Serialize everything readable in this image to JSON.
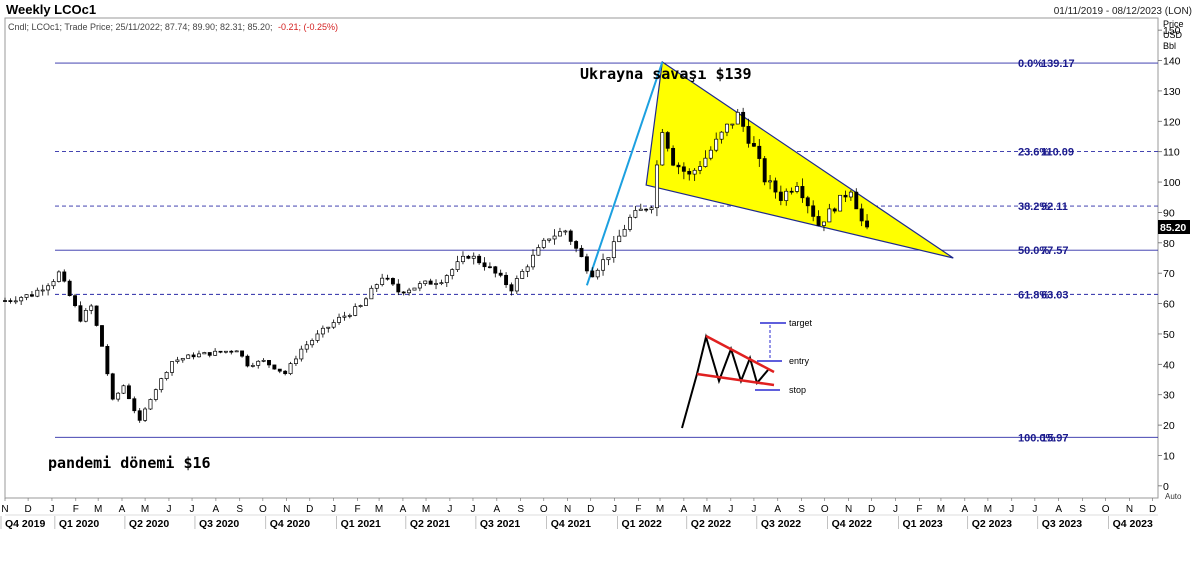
{
  "header": {
    "title": "Weekly LCOc1",
    "date_range": "01/11/2019 - 08/12/2023 (LON)",
    "legend_prefix": "Cndl; LCOc1; Trade Price; 25/11/2022; 87.74; 89.90; 82.31; 85.20;",
    "legend_change": "-0.21; (-0.25%)",
    "units": [
      "Price",
      "USD",
      "Bbl"
    ],
    "auto_label": "Auto"
  },
  "colors": {
    "fib_line": "#2a2aa6",
    "fib_text": "#1a1a8c",
    "wedge_fill": "#ffff00",
    "wedge_edge": "#1f2a8c",
    "impulse": "#1ca0e0",
    "candle": "#000000",
    "change_text": "#d42020",
    "pattern_red": "#e02020",
    "pattern_blue": "#2a2ad0"
  },
  "chart_data": {
    "type": "candlestick",
    "title": "Weekly LCOc1",
    "ylabel": "Price USD Bbl",
    "ylim": [
      -4,
      154
    ],
    "y_ticks": [
      0,
      10,
      20,
      30,
      40,
      50,
      60,
      70,
      80,
      90,
      100,
      110,
      120,
      130,
      140,
      150
    ],
    "x_range": [
      "2019-11-01",
      "2023-12-08"
    ],
    "last_price": "85.20",
    "month_ticks": [
      {
        "label": "N",
        "date": "2019-11-01"
      },
      {
        "label": "D",
        "date": "2019-12-01"
      },
      {
        "label": "J",
        "date": "2020-01-01"
      },
      {
        "label": "F",
        "date": "2020-02-01"
      },
      {
        "label": "M",
        "date": "2020-03-01"
      },
      {
        "label": "A",
        "date": "2020-04-01"
      },
      {
        "label": "M",
        "date": "2020-05-01"
      },
      {
        "label": "J",
        "date": "2020-06-01"
      },
      {
        "label": "J",
        "date": "2020-07-01"
      },
      {
        "label": "A",
        "date": "2020-08-01"
      },
      {
        "label": "S",
        "date": "2020-09-01"
      },
      {
        "label": "O",
        "date": "2020-10-01"
      },
      {
        "label": "N",
        "date": "2020-11-01"
      },
      {
        "label": "D",
        "date": "2020-12-01"
      },
      {
        "label": "J",
        "date": "2021-01-01"
      },
      {
        "label": "F",
        "date": "2021-02-01"
      },
      {
        "label": "M",
        "date": "2021-03-01"
      },
      {
        "label": "A",
        "date": "2021-04-01"
      },
      {
        "label": "M",
        "date": "2021-05-01"
      },
      {
        "label": "J",
        "date": "2021-06-01"
      },
      {
        "label": "J",
        "date": "2021-07-01"
      },
      {
        "label": "A",
        "date": "2021-08-01"
      },
      {
        "label": "S",
        "date": "2021-09-01"
      },
      {
        "label": "O",
        "date": "2021-10-01"
      },
      {
        "label": "N",
        "date": "2021-11-01"
      },
      {
        "label": "D",
        "date": "2021-12-01"
      },
      {
        "label": "J",
        "date": "2022-01-01"
      },
      {
        "label": "F",
        "date": "2022-02-01"
      },
      {
        "label": "M",
        "date": "2022-03-01"
      },
      {
        "label": "A",
        "date": "2022-04-01"
      },
      {
        "label": "M",
        "date": "2022-05-01"
      },
      {
        "label": "J",
        "date": "2022-06-01"
      },
      {
        "label": "J",
        "date": "2022-07-01"
      },
      {
        "label": "A",
        "date": "2022-08-01"
      },
      {
        "label": "S",
        "date": "2022-09-01"
      },
      {
        "label": "O",
        "date": "2022-10-01"
      },
      {
        "label": "N",
        "date": "2022-11-01"
      },
      {
        "label": "D",
        "date": "2022-12-01"
      },
      {
        "label": "J",
        "date": "2023-01-01"
      },
      {
        "label": "F",
        "date": "2023-02-01"
      },
      {
        "label": "M",
        "date": "2023-03-01"
      },
      {
        "label": "A",
        "date": "2023-04-01"
      },
      {
        "label": "M",
        "date": "2023-05-01"
      },
      {
        "label": "J",
        "date": "2023-06-01"
      },
      {
        "label": "J",
        "date": "2023-07-01"
      },
      {
        "label": "A",
        "date": "2023-08-01"
      },
      {
        "label": "S",
        "date": "2023-09-01"
      },
      {
        "label": "O",
        "date": "2023-10-01"
      },
      {
        "label": "N",
        "date": "2023-11-01"
      },
      {
        "label": "D",
        "date": "2023-12-01"
      }
    ],
    "quarter_labels": [
      {
        "label": "Q4 2019",
        "date": "2019-11-01"
      },
      {
        "label": "Q1 2020",
        "date": "2020-01-10"
      },
      {
        "label": "Q2 2020",
        "date": "2020-04-10"
      },
      {
        "label": "Q3 2020",
        "date": "2020-07-10"
      },
      {
        "label": "Q4 2020",
        "date": "2020-10-10"
      },
      {
        "label": "Q1 2021",
        "date": "2021-01-10"
      },
      {
        "label": "Q2 2021",
        "date": "2021-04-10"
      },
      {
        "label": "Q3 2021",
        "date": "2021-07-10"
      },
      {
        "label": "Q4 2021",
        "date": "2021-10-10"
      },
      {
        "label": "Q1 2022",
        "date": "2022-01-10"
      },
      {
        "label": "Q2 2022",
        "date": "2022-04-10"
      },
      {
        "label": "Q3 2022",
        "date": "2022-07-10"
      },
      {
        "label": "Q4 2022",
        "date": "2022-10-10"
      },
      {
        "label": "Q1 2023",
        "date": "2023-01-10"
      },
      {
        "label": "Q2 2023",
        "date": "2023-04-10"
      },
      {
        "label": "Q3 2023",
        "date": "2023-07-10"
      },
      {
        "label": "Q4 2023",
        "date": "2023-10-10"
      }
    ],
    "price_path": [
      [
        "2019-11-01",
        61
      ],
      [
        "2019-12-06",
        63
      ],
      [
        "2020-01-03",
        68
      ],
      [
        "2020-01-10",
        70
      ],
      [
        "2020-02-07",
        55
      ],
      [
        "2020-02-21",
        59
      ],
      [
        "2020-03-06",
        46
      ],
      [
        "2020-03-20",
        28
      ],
      [
        "2020-04-03",
        33
      ],
      [
        "2020-04-24",
        21
      ],
      [
        "2020-05-08",
        29
      ],
      [
        "2020-06-05",
        41
      ],
      [
        "2020-07-03",
        43
      ],
      [
        "2020-08-07",
        44
      ],
      [
        "2020-08-28",
        45
      ],
      [
        "2020-09-11",
        40
      ],
      [
        "2020-10-02",
        41
      ],
      [
        "2020-10-30",
        37
      ],
      [
        "2020-11-20",
        45
      ],
      [
        "2020-12-18",
        51
      ],
      [
        "2021-01-08",
        55
      ],
      [
        "2021-02-05",
        59
      ],
      [
        "2021-03-05",
        69
      ],
      [
        "2021-03-26",
        64
      ],
      [
        "2021-04-23",
        66
      ],
      [
        "2021-05-21",
        68
      ],
      [
        "2021-06-25",
        76
      ],
      [
        "2021-07-16",
        73
      ],
      [
        "2021-08-20",
        65
      ],
      [
        "2021-09-10",
        73
      ],
      [
        "2021-10-08",
        82
      ],
      [
        "2021-10-29",
        84
      ],
      [
        "2021-11-26",
        72
      ],
      [
        "2021-12-03",
        70
      ],
      [
        "2021-12-24",
        76
      ],
      [
        "2022-01-21",
        88
      ],
      [
        "2022-02-18",
        93
      ],
      [
        "2022-03-04",
        118
      ],
      [
        "2022-03-18",
        107
      ],
      [
        "2022-04-08",
        102
      ],
      [
        "2022-04-29",
        108
      ],
      [
        "2022-05-27",
        118
      ],
      [
        "2022-06-10",
        122
      ],
      [
        "2022-07-01",
        111
      ],
      [
        "2022-07-15",
        101
      ],
      [
        "2022-08-05",
        95
      ],
      [
        "2022-08-26",
        100
      ],
      [
        "2022-09-23",
        86
      ],
      [
        "2022-10-14",
        92
      ],
      [
        "2022-11-04",
        98
      ],
      [
        "2022-11-18",
        87
      ],
      [
        "2022-11-25",
        85.2
      ]
    ],
    "candle_count": 161,
    "fibonacci": [
      {
        "label": "0.0%",
        "value": 139.17,
        "value_text": "139.17",
        "style": "solid"
      },
      {
        "label": "23.6%",
        "value": 110.09,
        "value_text": "110.09",
        "style": "dashed"
      },
      {
        "label": "38.2%",
        "value": 92.11,
        "value_text": "92.11",
        "style": "dashed"
      },
      {
        "label": "50.0%",
        "value": 77.57,
        "value_text": "77.57",
        "style": "solid"
      },
      {
        "label": "61.8%",
        "value": 63.03,
        "value_text": "63.03",
        "style": "dashed"
      },
      {
        "label": "100.0%",
        "value": 15.97,
        "value_text": "15.97",
        "style": "solid"
      }
    ],
    "wedge": {
      "points": [
        [
          "2022-03-04",
          139.5
        ],
        [
          "2023-03-17",
          75
        ],
        [
          "2022-02-11",
          99
        ]
      ]
    },
    "impulse": {
      "points": [
        [
          "2021-11-26",
          66
        ],
        [
          "2022-03-04",
          139.5
        ]
      ]
    },
    "annotations": [
      {
        "text": "Ukrayna savaşı $139"
      },
      {
        "text": "pandemi dönemi $16"
      }
    ],
    "pattern_inset": {
      "labels": [
        "target",
        "entry",
        "stop"
      ]
    }
  }
}
